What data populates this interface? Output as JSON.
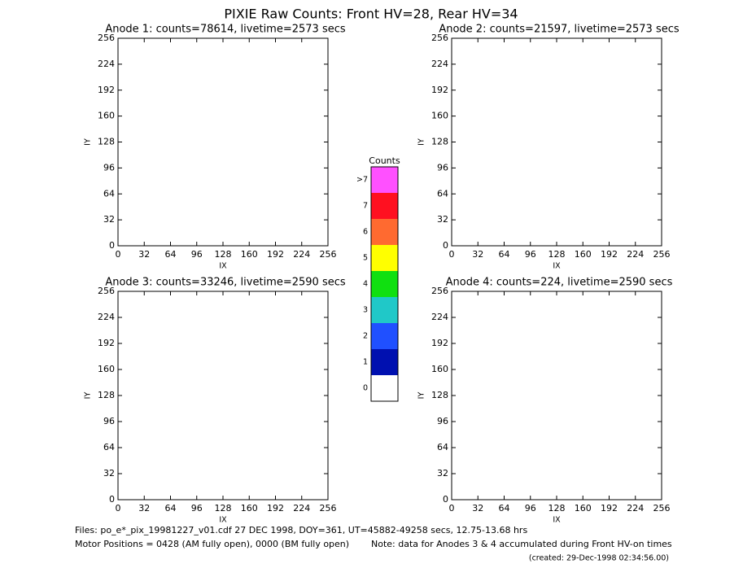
{
  "title": "PIXIE Raw Counts:  Front HV=28, Rear HV=34",
  "panels": [
    {
      "title": "Anode 1: counts=78614, livetime=2573 secs",
      "xlabel": "IX",
      "ylabel": "IY",
      "xlim": [
        0,
        256
      ],
      "ylim": [
        0,
        256
      ],
      "xticks": [
        0,
        32,
        64,
        96,
        128,
        160,
        192,
        224,
        256
      ],
      "yticks": [
        0,
        32,
        64,
        96,
        128,
        160,
        192,
        224,
        256
      ]
    },
    {
      "title": "Anode 2: counts=21597, livetime=2573 secs",
      "xlabel": "IX",
      "ylabel": "IY",
      "xlim": [
        0,
        256
      ],
      "ylim": [
        0,
        256
      ],
      "xticks": [
        0,
        32,
        64,
        96,
        128,
        160,
        192,
        224,
        256
      ],
      "yticks": [
        0,
        32,
        64,
        96,
        128,
        160,
        192,
        224,
        256
      ]
    },
    {
      "title": "Anode 3: counts=33246, livetime=2590 secs",
      "xlabel": "IX",
      "ylabel": "IY",
      "xlim": [
        0,
        256
      ],
      "ylim": [
        0,
        256
      ],
      "xticks": [
        0,
        32,
        64,
        96,
        128,
        160,
        192,
        224,
        256
      ],
      "yticks": [
        0,
        32,
        64,
        96,
        128,
        160,
        192,
        224,
        256
      ]
    },
    {
      "title": "Anode 4: counts=224, livetime=2590 secs",
      "xlabel": "IX",
      "ylabel": "IY",
      "xlim": [
        0,
        256
      ],
      "ylim": [
        0,
        256
      ],
      "xticks": [
        0,
        32,
        64,
        96,
        128,
        160,
        192,
        224,
        256
      ],
      "yticks": [
        0,
        32,
        64,
        96,
        128,
        160,
        192,
        224,
        256
      ]
    }
  ],
  "colorbar": {
    "title": "Counts",
    "levels": [
      "0",
      "1",
      "2",
      "3",
      "4",
      "5",
      "6",
      "7",
      ">7"
    ],
    "colors": [
      "#ffffff",
      "#0010b0",
      "#2050ff",
      "#20c8c8",
      "#10e010",
      "#ffff00",
      "#ff6a30",
      "#ff1020",
      "#ff50ff"
    ]
  },
  "footer": {
    "files": "Files: po_e*_pix_19981227_v01.cdf   27 DEC 1998, DOY=361, UT=45882-49258 secs, 12.75-13.68 hrs",
    "motor": "Motor Positions = 0428 (AM fully open), 0000 (BM fully open)",
    "note": "Note: data for Anodes 3 & 4 accumulated during Front HV-on times",
    "created": "(created: 29-Dec-1998 02:34:56.00)"
  }
}
